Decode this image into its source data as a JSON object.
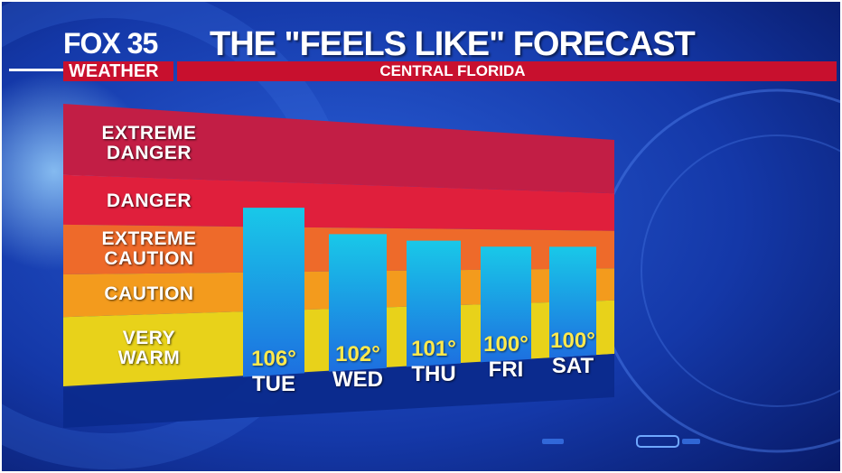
{
  "header": {
    "logo_top": "FOX 35",
    "logo_bottom": "WEATHER",
    "title": "THE \"FEELS LIKE\" FORECAST",
    "subtitle": "CENTRAL FLORIDA"
  },
  "colors": {
    "zone_extreme_danger": "#c21e45",
    "zone_danger": "#e01f3c",
    "zone_extreme_caution": "#ee6a2a",
    "zone_caution": "#f39b1d",
    "zone_very_warm": "#e8d21a",
    "bar_top": "#19c8e8",
    "bar_bottom": "#1d6fe0",
    "value_text": "#ffe94d",
    "brand_red": "#c8102e"
  },
  "chart_data": {
    "type": "bar",
    "categories": [
      "TUE",
      "WED",
      "THU",
      "FRI",
      "SAT"
    ],
    "values": [
      106,
      102,
      101,
      100,
      100
    ],
    "value_labels": [
      "106°",
      "102°",
      "101°",
      "100°",
      "100°"
    ],
    "zones": [
      {
        "label_lines": [
          "EXTREME",
          "DANGER"
        ],
        "from": 110,
        "to": 120,
        "color_key": "zone_extreme_danger"
      },
      {
        "label_lines": [
          "DANGER"
        ],
        "from": 103,
        "to": 110,
        "color_key": "zone_danger"
      },
      {
        "label_lines": [
          "EXTREME",
          "CAUTION"
        ],
        "from": 96,
        "to": 103,
        "color_key": "zone_extreme_caution"
      },
      {
        "label_lines": [
          "CAUTION"
        ],
        "from": 90,
        "to": 96,
        "color_key": "zone_caution"
      },
      {
        "label_lines": [
          "VERY",
          "WARM"
        ],
        "from": 80,
        "to": 90,
        "color_key": "zone_very_warm"
      }
    ],
    "ylim": [
      80,
      120
    ],
    "grid": false,
    "legend": "none"
  }
}
